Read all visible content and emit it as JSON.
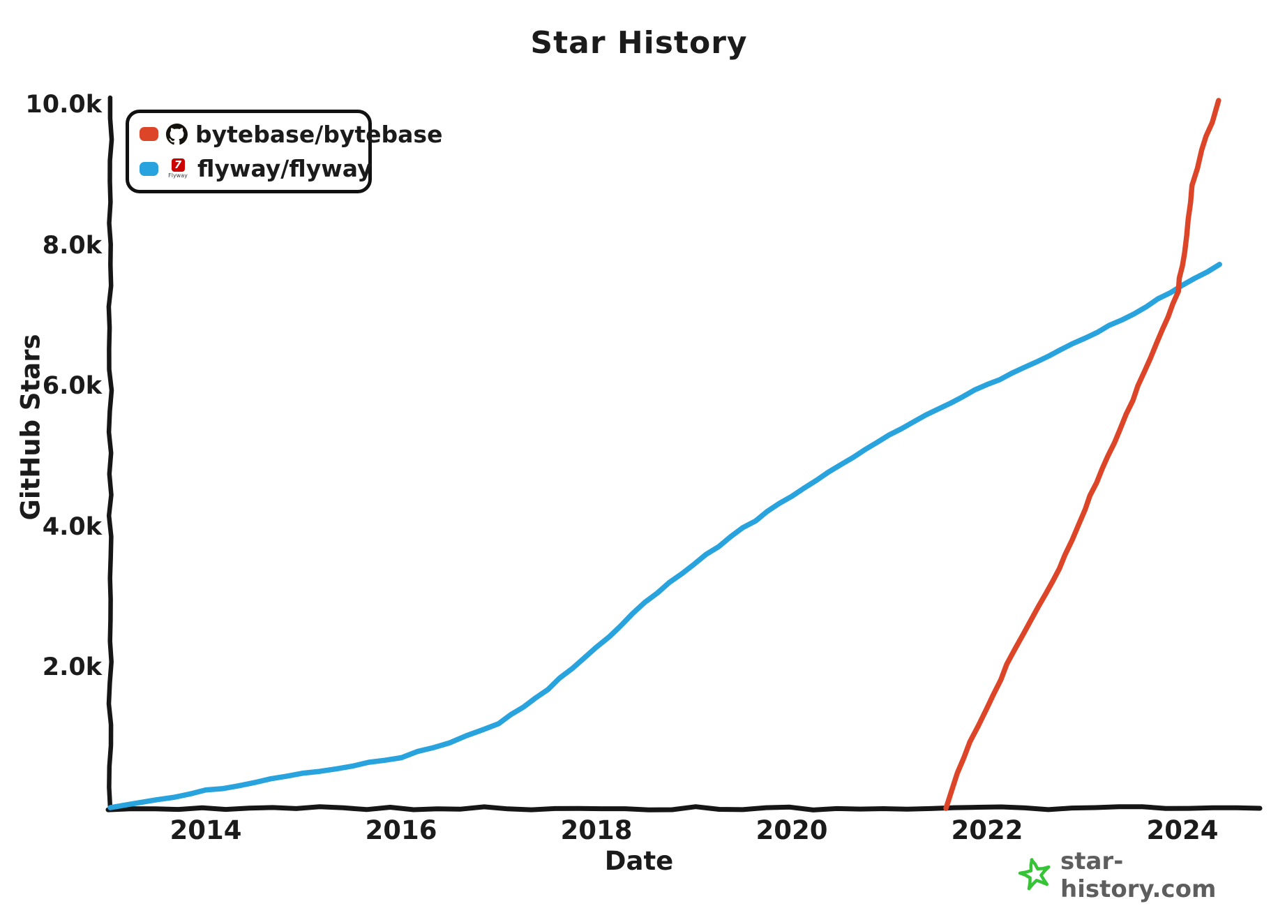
{
  "title": "Star History",
  "axes": {
    "x_label": "Date",
    "y_label": "GitHub Stars"
  },
  "legend": {
    "items": [
      {
        "label": "bytebase/bytebase",
        "color": "#dd4528",
        "icon": "github-icon"
      },
      {
        "label": "flyway/flyway",
        "color": "#28a3dd",
        "icon": "flyway-icon",
        "icon_glyph": "7",
        "icon_text": "Flyway"
      }
    ]
  },
  "watermark": {
    "text": "star-history.com",
    "star_color": "#35c435",
    "text_color": "#5e5e5e"
  },
  "colors": {
    "axis": "#161616",
    "text": "#1b1b1b",
    "bytebase_red": "#dd4528",
    "flyway_blue": "#28a3dd"
  },
  "chart_data": {
    "type": "line",
    "title": "Star History",
    "xlabel": "Date",
    "ylabel": "GitHub Stars",
    "grid": false,
    "legend_position": "top-left",
    "x_range": [
      2013.0,
      2024.8
    ],
    "y_range": [
      0,
      10000
    ],
    "x_ticks": [
      {
        "value": 2014,
        "label": "2014"
      },
      {
        "value": 2016,
        "label": "2016"
      },
      {
        "value": 2018,
        "label": "2018"
      },
      {
        "value": 2020,
        "label": "2020"
      },
      {
        "value": 2022,
        "label": "2022"
      },
      {
        "value": 2024,
        "label": "2024"
      }
    ],
    "y_ticks": [
      {
        "value": 10000,
        "label": "10.0k"
      },
      {
        "value": 8000,
        "label": "8.0k"
      },
      {
        "value": 6000,
        "label": "6.0k"
      },
      {
        "value": 4000,
        "label": "4.0k"
      },
      {
        "value": 2000,
        "label": "2.0k"
      }
    ],
    "series": [
      {
        "name": "flyway/flyway",
        "color": "#28a3dd",
        "points": [
          [
            2013.02,
            20
          ],
          [
            2013.5,
            120
          ],
          [
            2014.0,
            250
          ],
          [
            2014.5,
            370
          ],
          [
            2015.0,
            490
          ],
          [
            2015.5,
            610
          ],
          [
            2016.0,
            730
          ],
          [
            2016.5,
            930
          ],
          [
            2017.0,
            1200
          ],
          [
            2017.5,
            1700
          ],
          [
            2018.0,
            2280
          ],
          [
            2018.5,
            2920
          ],
          [
            2019.0,
            3480
          ],
          [
            2019.5,
            3980
          ],
          [
            2020.0,
            4440
          ],
          [
            2020.5,
            4890
          ],
          [
            2021.0,
            5300
          ],
          [
            2021.5,
            5680
          ],
          [
            2022.0,
            6020
          ],
          [
            2022.5,
            6350
          ],
          [
            2023.0,
            6690
          ],
          [
            2023.5,
            7030
          ],
          [
            2024.0,
            7430
          ],
          [
            2024.38,
            7730
          ]
        ]
      },
      {
        "name": "bytebase/bytebase",
        "color": "#dd4528",
        "points": [
          [
            2021.58,
            0
          ],
          [
            2021.7,
            500
          ],
          [
            2021.82,
            950
          ],
          [
            2022.0,
            1400
          ],
          [
            2022.2,
            2050
          ],
          [
            2022.45,
            2700
          ],
          [
            2022.6,
            3050
          ],
          [
            2022.8,
            3600
          ],
          [
            2023.0,
            4250
          ],
          [
            2023.3,
            5200
          ],
          [
            2023.55,
            6000
          ],
          [
            2023.8,
            6800
          ],
          [
            2023.95,
            7350
          ],
          [
            2024.02,
            7900
          ],
          [
            2024.1,
            8850
          ],
          [
            2024.2,
            9350
          ],
          [
            2024.3,
            9750
          ],
          [
            2024.37,
            10060
          ]
        ]
      }
    ]
  }
}
